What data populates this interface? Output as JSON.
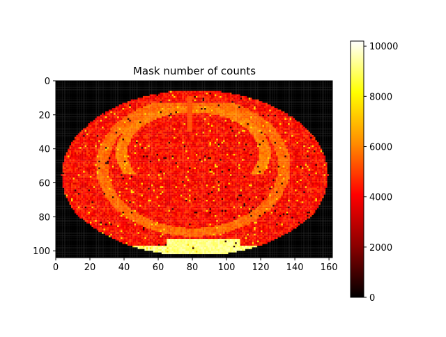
{
  "chart_data": {
    "type": "heatmap",
    "title": "Mask number of counts",
    "xlabel": "",
    "ylabel": "",
    "colormap": "hot",
    "colormap_stops": [
      "#000000",
      "#8b0000",
      "#ff0000",
      "#ff8c00",
      "#ffff00",
      "#ffffff"
    ],
    "xlim": [
      0,
      162
    ],
    "ylim": [
      0,
      104
    ],
    "y_inverted": true,
    "x_ticks": [
      0,
      20,
      40,
      60,
      80,
      100,
      120,
      140,
      160
    ],
    "y_ticks": [
      0,
      20,
      40,
      60,
      80,
      100
    ],
    "colorbar": {
      "range": [
        0,
        10200
      ],
      "ticks": [
        0,
        2000,
        4000,
        6000,
        8000,
        10000
      ]
    },
    "regions": {
      "background_value": 0,
      "tissue_base_value": 4200,
      "tissue_noise": 900,
      "outer_ring_value": 5600,
      "inner_ring_value": 5900,
      "midline_value": 5200,
      "bottom_band_value": 9200,
      "dark_spot_value": 700,
      "bright_speck_value": 7500
    }
  }
}
